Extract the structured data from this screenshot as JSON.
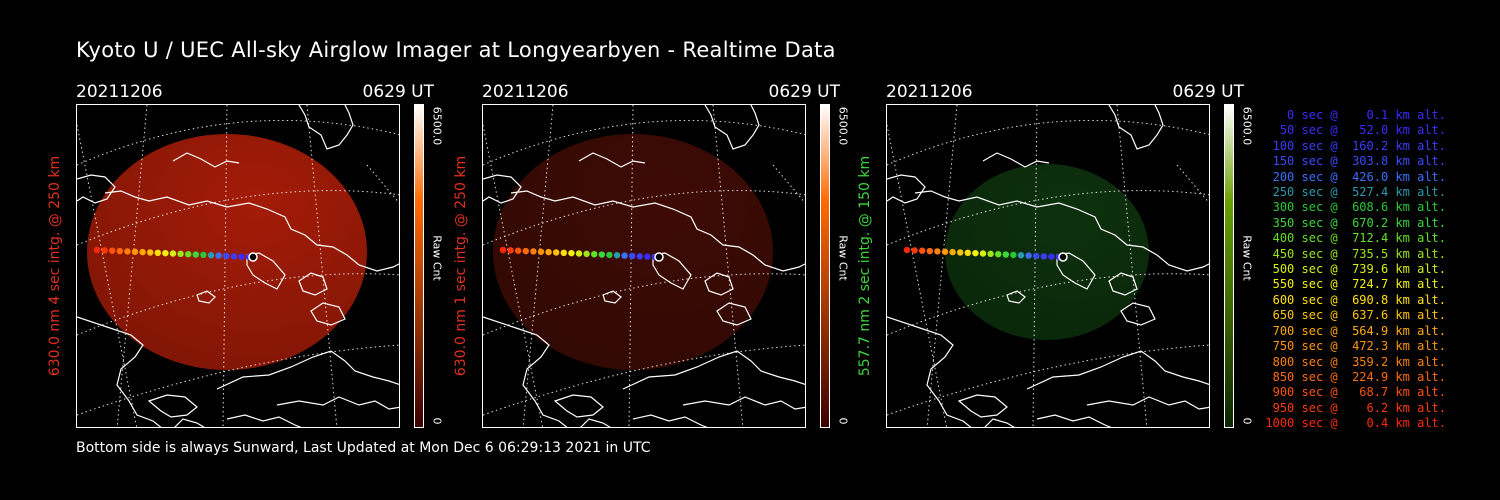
{
  "title": "Kyoto U / UEC All-sky Airglow Imager at Longyearbyen - Realtime Data",
  "footer": "Bottom side is always Sunward, Last Updated at Mon Dec  6 06:29:13 2021 in UTC",
  "panels": [
    {
      "date": "20211206",
      "time": "0629 UT",
      "ylabel": "630.0 nm 4 sec intg. @ 250 km",
      "label_color": "#e0301e",
      "cbar_max": "6500.0",
      "cbar_unit": "Raw Cnt",
      "cbar_min": "0",
      "glow": "#b21e08",
      "glow_opacity": 0.92,
      "cbar_top": "#ffffff",
      "cbar_mid": "#ff6a00",
      "cbar_bot": "#3a0000"
    },
    {
      "date": "20211206",
      "time": "0629 UT",
      "ylabel": "630.0 nm 1 sec intg. @ 250 km",
      "label_color": "#e0301e",
      "cbar_max": "6500.0",
      "cbar_unit": "Raw Cnt",
      "cbar_min": "0",
      "glow": "#4a0d05",
      "glow_opacity": 0.85,
      "cbar_top": "#ffffff",
      "cbar_mid": "#ff6a00",
      "cbar_bot": "#3a0000"
    },
    {
      "date": "20211206",
      "time": "0629 UT",
      "ylabel": "557.7 nm 2 sec intg. @ 150 km",
      "label_color": "#3fd43f",
      "cbar_max": "6500.0",
      "cbar_unit": "Raw Cnt",
      "cbar_min": "0",
      "glow": "#0f3a0f",
      "glow_opacity": 0.85,
      "cbar_top": "#ffffff",
      "cbar_mid": "#6aa000",
      "cbar_bot": "#0a2600"
    }
  ],
  "legend": [
    {
      "text": "0 sec @    0.1 km alt.",
      "color": "#3a2cff"
    },
    {
      "text": "50 sec @   52.0 km alt.",
      "color": "#3a2cff"
    },
    {
      "text": "100 sec @  160.2 km alt.",
      "color": "#3a3cff"
    },
    {
      "text": "150 sec @  303.8 km alt.",
      "color": "#3a4aff"
    },
    {
      "text": "200 sec @  426.0 km alt.",
      "color": "#3a70ff"
    },
    {
      "text": "250 sec @  527.4 km alt.",
      "color": "#2a9ab0"
    },
    {
      "text": "300 sec @  608.6 km alt.",
      "color": "#28c838"
    },
    {
      "text": "350 sec @  670.2 km alt.",
      "color": "#3ad83a"
    },
    {
      "text": "400 sec @  712.4 km alt.",
      "color": "#66e024"
    },
    {
      "text": "450 sec @  735.5 km alt.",
      "color": "#9ce61a"
    },
    {
      "text": "500 sec @  739.6 km alt.",
      "color": "#d6ee14"
    },
    {
      "text": "550 sec @  724.7 km alt.",
      "color": "#f4f20e"
    },
    {
      "text": "600 sec @  690.8 km alt.",
      "color": "#ffe00a"
    },
    {
      "text": "650 sec @  637.6 km alt.",
      "color": "#ffc40a"
    },
    {
      "text": "700 sec @  564.9 km alt.",
      "color": "#ffaa0a"
    },
    {
      "text": "750 sec @  472.3 km alt.",
      "color": "#ff960a"
    },
    {
      "text": "800 sec @  359.2 km alt.",
      "color": "#ff800a"
    },
    {
      "text": "850 sec @  224.9 km alt.",
      "color": "#ff6a0a"
    },
    {
      "text": "900 sec @   68.7 km alt.",
      "color": "#ff520a"
    },
    {
      "text": "950 sec @    6.2 km alt.",
      "color": "#ff3a0a"
    },
    {
      "text": "1000 sec @    0.4 km alt.",
      "color": "#ff280a"
    }
  ]
}
